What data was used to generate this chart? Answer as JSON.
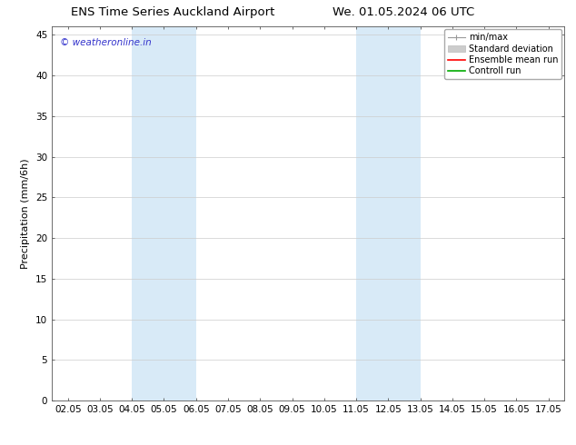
{
  "title_left": "ENS Time Series Auckland Airport",
  "title_right": "We. 01.05.2024 06 UTC",
  "ylabel": "Precipitation (mm/6h)",
  "ylim": [
    0,
    46
  ],
  "yticks": [
    0,
    5,
    10,
    15,
    20,
    25,
    30,
    35,
    40,
    45
  ],
  "x_labels": [
    "02.05",
    "03.05",
    "04.05",
    "05.05",
    "06.05",
    "07.05",
    "08.05",
    "09.05",
    "10.05",
    "11.05",
    "12.05",
    "13.05",
    "14.05",
    "15.05",
    "16.05",
    "17.05"
  ],
  "x_values": [
    2,
    3,
    4,
    5,
    6,
    7,
    8,
    9,
    10,
    11,
    12,
    13,
    14,
    15,
    16,
    17
  ],
  "xlim": [
    1.5,
    17.5
  ],
  "shaded_bands": [
    {
      "xmin": 4.0,
      "xmax": 6.0,
      "color": "#d8eaf7"
    },
    {
      "xmin": 11.0,
      "xmax": 13.0,
      "color": "#d8eaf7"
    }
  ],
  "watermark": "© weatheronline.in",
  "watermark_color": "#3333cc",
  "legend_items": [
    {
      "label": "min/max",
      "type": "minmax",
      "color": "#999999"
    },
    {
      "label": "Standard deviation",
      "type": "patch",
      "color": "#cccccc"
    },
    {
      "label": "Ensemble mean run",
      "type": "line",
      "color": "#ff0000"
    },
    {
      "label": "Controll run",
      "type": "line",
      "color": "#00aa00"
    }
  ],
  "bg_color": "#ffffff",
  "grid_color": "#cccccc",
  "title_fontsize": 9.5,
  "axis_fontsize": 8,
  "tick_fontsize": 7.5,
  "legend_fontsize": 7,
  "watermark_fontsize": 7.5
}
